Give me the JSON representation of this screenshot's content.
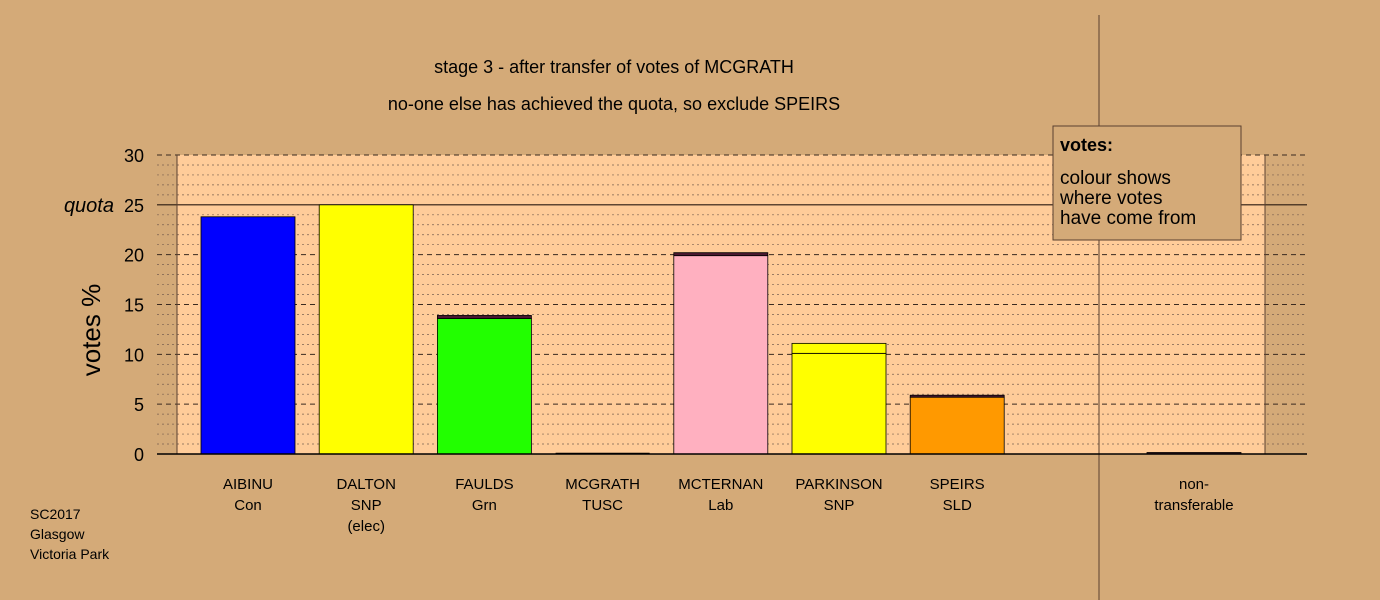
{
  "chart_data": {
    "type": "bar",
    "title": "stage 3 - after transfer of votes of MCGRATH",
    "subtitle": "no-one else has achieved the quota, so exclude SPEIRS",
    "ylabel": "votes %",
    "ylim": [
      0,
      30
    ],
    "yticks": [
      "0",
      "5",
      "10",
      "15",
      "20",
      "25",
      "30"
    ],
    "quota": 25,
    "quota_label": "quota",
    "grid": true,
    "candidates": [
      {
        "name": "AIBINU",
        "lines": [
          "AIBINU",
          "Con"
        ],
        "value": 23.8,
        "segments": [
          {
            "value": 23.8,
            "color": "#0000ff"
          }
        ]
      },
      {
        "name": "DALTON",
        "lines": [
          "DALTON",
          "SNP",
          "(elec)"
        ],
        "value": 25.0,
        "segments": [
          {
            "value": 25.0,
            "color": "#ffff00"
          }
        ]
      },
      {
        "name": "FAULDS",
        "lines": [
          "FAULDS",
          "Grn"
        ],
        "value": 13.9,
        "segments": [
          {
            "value": 13.6,
            "color": "#22ff00"
          },
          {
            "value": 0.3,
            "color": "#4a1830"
          }
        ]
      },
      {
        "name": "MCGRATH",
        "lines": [
          "MCGRATH",
          "TUSC"
        ],
        "value": 0,
        "segments": []
      },
      {
        "name": "MCTERNAN",
        "lines": [
          "MCTERNAN",
          "Lab"
        ],
        "value": 20.2,
        "segments": [
          {
            "value": 19.9,
            "color": "#ffb0c0"
          },
          {
            "value": 0.3,
            "color": "#4a1830"
          }
        ]
      },
      {
        "name": "PARKINSON",
        "lines": [
          "PARKINSON",
          "SNP"
        ],
        "value": 11.1,
        "segments": [
          {
            "value": 10.1,
            "color": "#ffff00"
          },
          {
            "value": 1.0,
            "color": "#ffff00"
          }
        ]
      },
      {
        "name": "SPEIRS",
        "lines": [
          "SPEIRS",
          "SLD"
        ],
        "value": 5.9,
        "segments": [
          {
            "value": 5.7,
            "color": "#ff9900"
          },
          {
            "value": 0.2,
            "color": "#4a1830"
          }
        ]
      }
    ],
    "non_transferable": {
      "lines": [
        "non-",
        "transferable"
      ],
      "value": 0.15,
      "color": "#4a1830"
    }
  },
  "legend": {
    "title": "votes:",
    "lines": [
      "colour shows",
      "where votes",
      "have come from"
    ]
  },
  "footer": [
    "SC2017",
    "Glasgow",
    "Victoria Park"
  ],
  "colors": {
    "background": "#d4aa78",
    "plot_area": "#ffcc99"
  }
}
